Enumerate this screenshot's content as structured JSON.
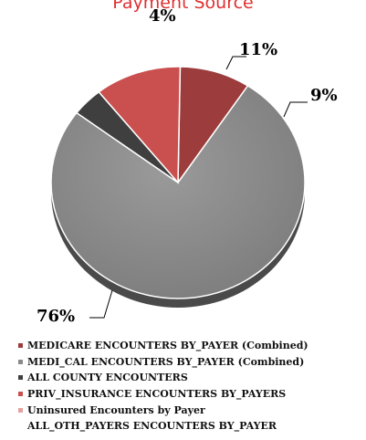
{
  "chart_data": {
    "type": "pie",
    "title": "Payment Source",
    "labels": [
      "9%",
      "76%",
      "4%",
      "11%"
    ],
    "slices": [
      {
        "name": "MEDICARE ENCOUNTERS BY_PAYER (Combined)",
        "value": 9,
        "color": "#9c3c3c"
      },
      {
        "name": "MEDI_CAL ENCOUNTERS BY_PAYER (Combined)",
        "value": 76,
        "color": "#8a8a8a"
      },
      {
        "name": "ALL COUNTY ENCOUNTERS",
        "value": 4,
        "color": "#3f3f3f"
      },
      {
        "name": "PRIV_INSURANCE ENCOUNTERS BY_PAYERS",
        "value": 11,
        "color": "#c9504f"
      },
      {
        "name": "Uninsured Encounters by Payer",
        "value": 0,
        "color": "#e6a0a0"
      },
      {
        "name": "ALL_OTH_PAYERS ENCOUNTERS BY_PAYER",
        "value": 0,
        "color": "#ffffff"
      }
    ],
    "legend_position": "bottom"
  }
}
